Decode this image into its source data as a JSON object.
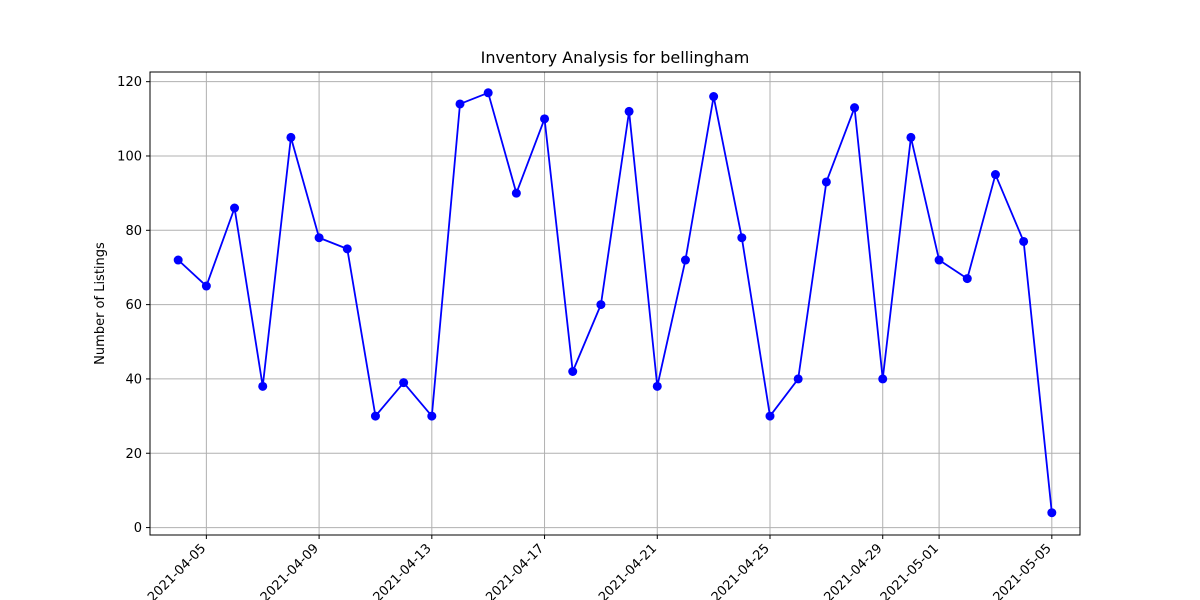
{
  "chart_data": {
    "type": "line",
    "title": "Inventory Analysis for bellingham",
    "xlabel": "",
    "ylabel": "Number of Listings",
    "x": [
      "2021-04-04",
      "2021-04-05",
      "2021-04-06",
      "2021-04-07",
      "2021-04-08",
      "2021-04-09",
      "2021-04-10",
      "2021-04-11",
      "2021-04-12",
      "2021-04-13",
      "2021-04-14",
      "2021-04-15",
      "2021-04-16",
      "2021-04-17",
      "2021-04-18",
      "2021-04-19",
      "2021-04-20",
      "2021-04-21",
      "2021-04-22",
      "2021-04-23",
      "2021-04-24",
      "2021-04-25",
      "2021-04-26",
      "2021-04-27",
      "2021-04-28",
      "2021-04-29",
      "2021-04-30",
      "2021-05-01",
      "2021-05-02",
      "2021-05-03",
      "2021-05-04",
      "2021-05-05"
    ],
    "values": [
      72,
      65,
      86,
      38,
      105,
      78,
      75,
      30,
      39,
      30,
      114,
      117,
      90,
      110,
      42,
      60,
      112,
      38,
      72,
      116,
      78,
      30,
      40,
      93,
      113,
      40,
      105,
      72,
      67,
      95,
      77,
      4
    ],
    "xlim": [
      "2021-04-03",
      "2021-05-06"
    ],
    "ylim": [
      -2,
      122.6
    ],
    "xticks": [
      "2021-04-05",
      "2021-04-09",
      "2021-04-13",
      "2021-04-17",
      "2021-04-21",
      "2021-04-25",
      "2021-04-29",
      "2021-05-01",
      "2021-05-05"
    ],
    "yticks": [
      0,
      20,
      40,
      60,
      80,
      100,
      120
    ],
    "grid": true,
    "line_color": "#0000ff",
    "marker": "circle"
  }
}
